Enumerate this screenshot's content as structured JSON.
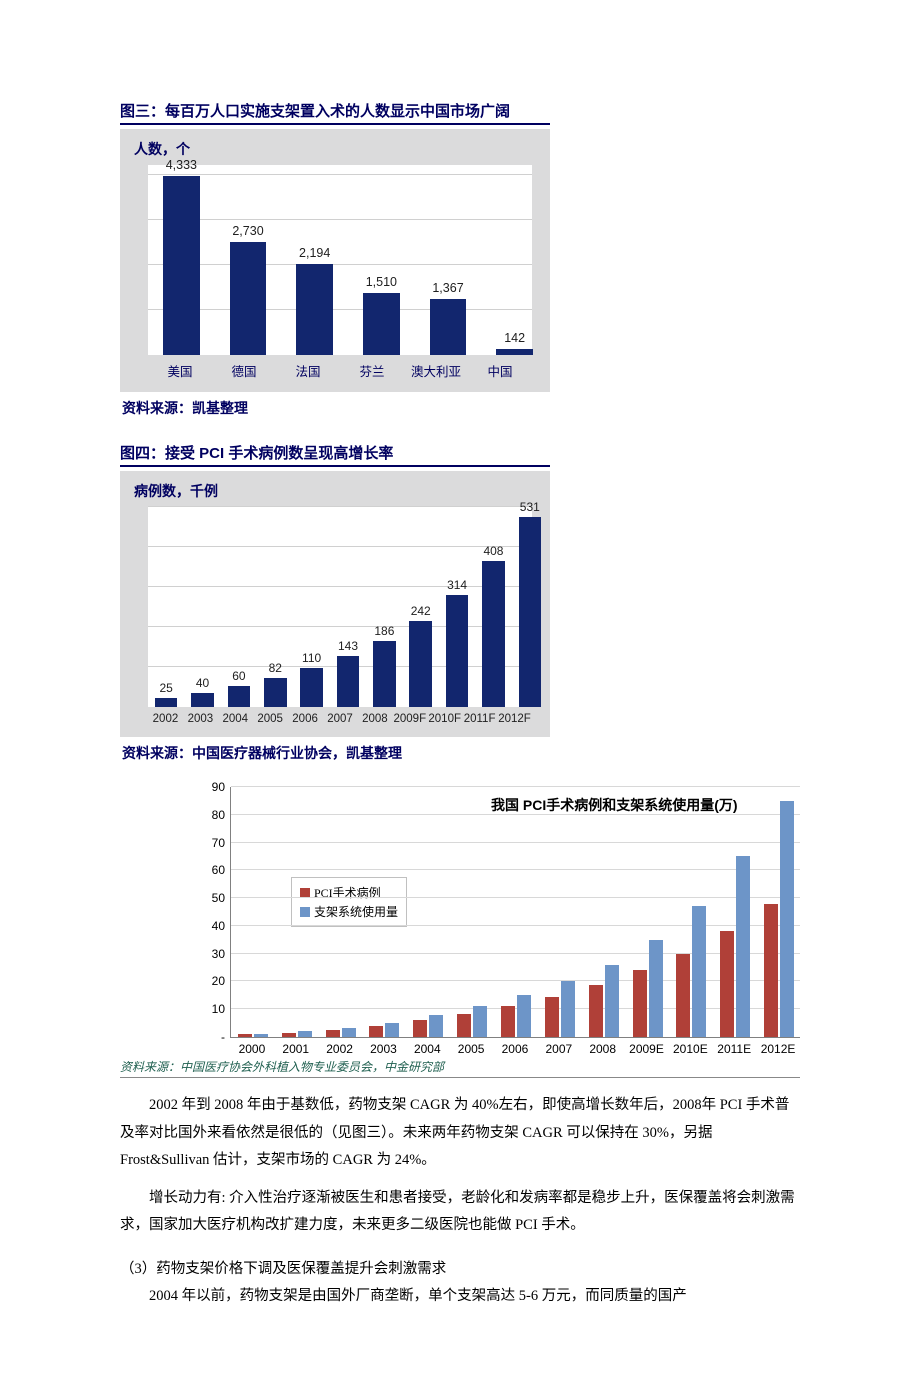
{
  "chart1": {
    "title": "图三：每百万人口实施支架置入术的人数显示中国市场广阔",
    "y_axis_label": "人数，个",
    "categories": [
      "美国",
      "德国",
      "法国",
      "芬兰",
      "澳大利亚",
      "中国"
    ],
    "values": [
      4333,
      2730,
      2194,
      1510,
      1367,
      142
    ],
    "value_labels": [
      "4,333",
      "2,730",
      "2,194",
      "1,510",
      "1,367",
      "142"
    ],
    "bar_color": "#12266e",
    "background": "#dbdbdc",
    "plot_background": "#ffffff",
    "grid_color": "#d0d0d0",
    "grid_count": 4,
    "ymax": 4600,
    "source": "资料来源：凯基整理"
  },
  "chart2": {
    "title": "图四：接受 PCI 手术病例数呈现高增长率",
    "y_axis_label": "病例数，千例",
    "categories": [
      "2002",
      "2003",
      "2004",
      "2005",
      "2006",
      "2007",
      "2008",
      "2009F",
      "2010F",
      "2011F",
      "2012F"
    ],
    "values": [
      25,
      40,
      60,
      82,
      110,
      143,
      186,
      242,
      314,
      408,
      531
    ],
    "value_labels": [
      "25",
      "40",
      "60",
      "82",
      "110",
      "143",
      "186",
      "242",
      "314",
      "408",
      "531"
    ],
    "bar_color": "#12266e",
    "background": "#dbdbdc",
    "plot_background": "#ffffff",
    "grid_color": "#d0d0d0",
    "grid_count": 5,
    "ymax": 560,
    "source": "资料来源：中国医疗器械行业协会，凯基整理"
  },
  "chart3": {
    "title": "我国 PCI手术病例和支架系统使用量(万)",
    "categories": [
      "2000",
      "2001",
      "2002",
      "2003",
      "2004",
      "2005",
      "2006",
      "2007",
      "2008",
      "2009E",
      "2010E",
      "2011E",
      "2012E"
    ],
    "series": [
      {
        "name": "PCI手术病例",
        "color": "#b04038",
        "values": [
          1,
          1.5,
          2.5,
          4,
          6,
          8.2,
          11,
          14.3,
          18.6,
          24,
          30,
          38,
          48
        ]
      },
      {
        "name": "支架系统使用量",
        "color": "#6d95c8",
        "values": [
          1.2,
          2,
          3.2,
          5,
          8,
          11,
          15,
          20,
          26,
          35,
          47,
          65,
          85
        ]
      }
    ],
    "yticks": [
      10,
      20,
      30,
      40,
      50,
      60,
      70,
      80,
      90
    ],
    "ymax": 90,
    "ytick_dash_label": "-",
    "grid_color": "#d8d8d8",
    "axis_color": "#808080",
    "source": "资料来源：中国医疗协会外科植入物专业委员会，中金研究部"
  },
  "body": {
    "p1": "2002 年到 2008 年由于基数低，药物支架 CAGR 为 40%左右，即使高增长数年后，2008年 PCI 手术普及率对比国外来看依然是很低的（见图三）。未来两年药物支架 CAGR 可以保持在 30%，另据 Frost&Sullivan 估计，支架市场的 CAGR 为 24%。",
    "p2": "增长动力有: 介入性治疗逐渐被医生和患者接受，老龄化和发病率都是稳步上升，医保覆盖将会刺激需求，国家加大医疗机构改扩建力度，未来更多二级医院也能做 PCI 手术。",
    "h3": "（3）药物支架价格下调及医保覆盖提升会刺激需求",
    "p3": "2004 年以前，药物支架是由国外厂商垄断，单个支架高达 5-6 万元，而同质量的国产"
  }
}
